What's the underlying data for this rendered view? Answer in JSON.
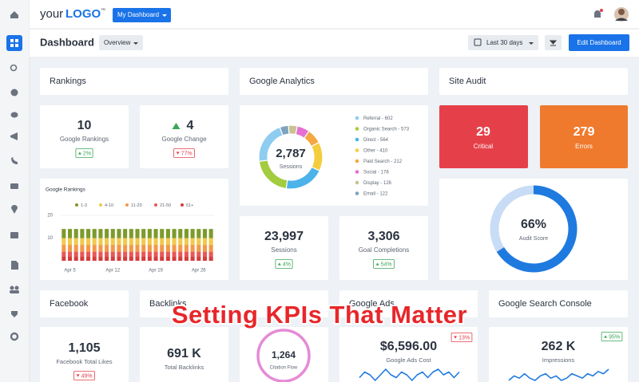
{
  "header": {
    "logo_prefix": "your",
    "logo_brand": "LOGO",
    "logo_mark": "™",
    "menu": "My Dashboard"
  },
  "toolbar": {
    "title": "Dashboard",
    "view": "Overview",
    "date_range": "Last 30 days",
    "action": "Edit Dashboard"
  },
  "rankings": {
    "title": "Rankings",
    "kpis": [
      {
        "value": "10",
        "label": "Google Rankings",
        "change": "2%",
        "trend": "up"
      },
      {
        "value": "4",
        "value_trend": "up",
        "label": "Google Change",
        "change": "77%",
        "trend": "down"
      }
    ],
    "chart": {
      "type": "bar",
      "stacked": true,
      "title": "Google Rankings",
      "categories": [
        null,
        "Apr 5",
        null,
        null,
        null,
        null,
        null,
        null,
        "Apr 12",
        null,
        null,
        null,
        null,
        null,
        null,
        "Apr 19",
        null,
        null,
        null,
        null,
        null,
        null,
        "Apr 26",
        null,
        null
      ],
      "ylim": [
        0,
        20
      ],
      "yticks": [
        10,
        20
      ],
      "grid": true,
      "series": [
        {
          "name": "1-3",
          "color": "#7d9a2c",
          "values": [
            4,
            4,
            4,
            4,
            4,
            4,
            4,
            4,
            4,
            4,
            4,
            4,
            4,
            4,
            4,
            4,
            4,
            4,
            4,
            4,
            4,
            4,
            4,
            4,
            4
          ]
        },
        {
          "name": "4-10",
          "color": "#f2c94c",
          "values": [
            3,
            3,
            3,
            3,
            3,
            3,
            3,
            3,
            3,
            3,
            3,
            3,
            3,
            3,
            3,
            3,
            3,
            3,
            3,
            3,
            3,
            3,
            3,
            3,
            3
          ]
        },
        {
          "name": "11-20",
          "color": "#f2994a",
          "values": [
            3,
            3,
            3,
            3,
            3,
            3,
            3,
            3,
            3,
            3,
            3,
            3,
            3,
            3,
            3,
            3,
            3,
            3,
            3,
            3,
            3,
            3,
            3,
            3,
            3
          ]
        },
        {
          "name": "21-50",
          "color": "#eb5757",
          "values": [
            2,
            2,
            2,
            2,
            2,
            2,
            2,
            2,
            2,
            2,
            2,
            2,
            2,
            2,
            2,
            2,
            2,
            2,
            2,
            2,
            2,
            2,
            2,
            2,
            2
          ]
        },
        {
          "name": "51+",
          "color": "#d63c3c",
          "values": [
            2,
            2,
            2,
            2,
            2,
            2,
            2,
            2,
            2,
            2,
            2,
            2,
            2,
            2,
            2,
            2,
            2,
            2,
            2,
            2,
            2,
            2,
            2,
            2,
            2
          ]
        }
      ]
    }
  },
  "analytics": {
    "title": "Google Analytics",
    "donut": {
      "type": "pie",
      "total_label": "2,787",
      "center_label": "Sessions",
      "segments": [
        {
          "label": "Referral - 602",
          "value": 602,
          "color": "#8ecdf0"
        },
        {
          "label": "Organic Search - 573",
          "value": 573,
          "color": "#a3cc3e"
        },
        {
          "label": "Direct - 564",
          "value": 564,
          "color": "#4cb2ea"
        },
        {
          "label": "Other - 410",
          "value": 410,
          "color": "#f4cd3f"
        },
        {
          "label": "Paid Search - 212",
          "value": 212,
          "color": "#f5a742"
        },
        {
          "label": "Social - 178",
          "value": 178,
          "color": "#e76fd2"
        },
        {
          "label": "Display - 126",
          "value": 126,
          "color": "#c9c394"
        },
        {
          "label": "Email - 122",
          "value": 122,
          "color": "#7fa3bd"
        }
      ]
    },
    "kpis": [
      {
        "value": "23,997",
        "label": "Sessions",
        "change": "4%",
        "trend": "up"
      },
      {
        "value": "3,306",
        "label": "Goal Completions",
        "change": "54%",
        "trend": "up"
      }
    ]
  },
  "site_audit": {
    "title": "Site Audit",
    "cards": [
      {
        "value": "29",
        "label": "Critical",
        "color": "#e5404a"
      },
      {
        "value": "279",
        "label": "Errors",
        "color": "#ef7a2e"
      }
    ],
    "score": 66,
    "score_label": "66%",
    "score_caption": "Audit Score"
  },
  "facebook": {
    "title": "Facebook",
    "value": "1,105",
    "label": "Facebook Total Likes",
    "change": "49%",
    "trend": "down"
  },
  "backlinks": {
    "title": "Backlinks",
    "value": "691 K",
    "label": "Total Backlinks",
    "citation_value": "1,264",
    "citation_label": "Citation Flow"
  },
  "google_ads": {
    "title": "Google Ads",
    "value": "$6,596.00",
    "label": "Google Ads Cost",
    "change": "13%",
    "trend": "down",
    "trendline": [
      4,
      6,
      5,
      3,
      5,
      7,
      5,
      4,
      6,
      5,
      3,
      5,
      6,
      4,
      6,
      7,
      5,
      6,
      4,
      6
    ]
  },
  "search_console": {
    "title": "Google Search Console",
    "value": "262 K",
    "label": "Impressions",
    "change": "95%",
    "trend": "up",
    "trendline": [
      3,
      5,
      4,
      6,
      4,
      3,
      5,
      6,
      4,
      5,
      3,
      4,
      6,
      5,
      4,
      6,
      5,
      7,
      6,
      8
    ]
  },
  "overlay": {
    "title": "Setting KPIs That Matter"
  }
}
